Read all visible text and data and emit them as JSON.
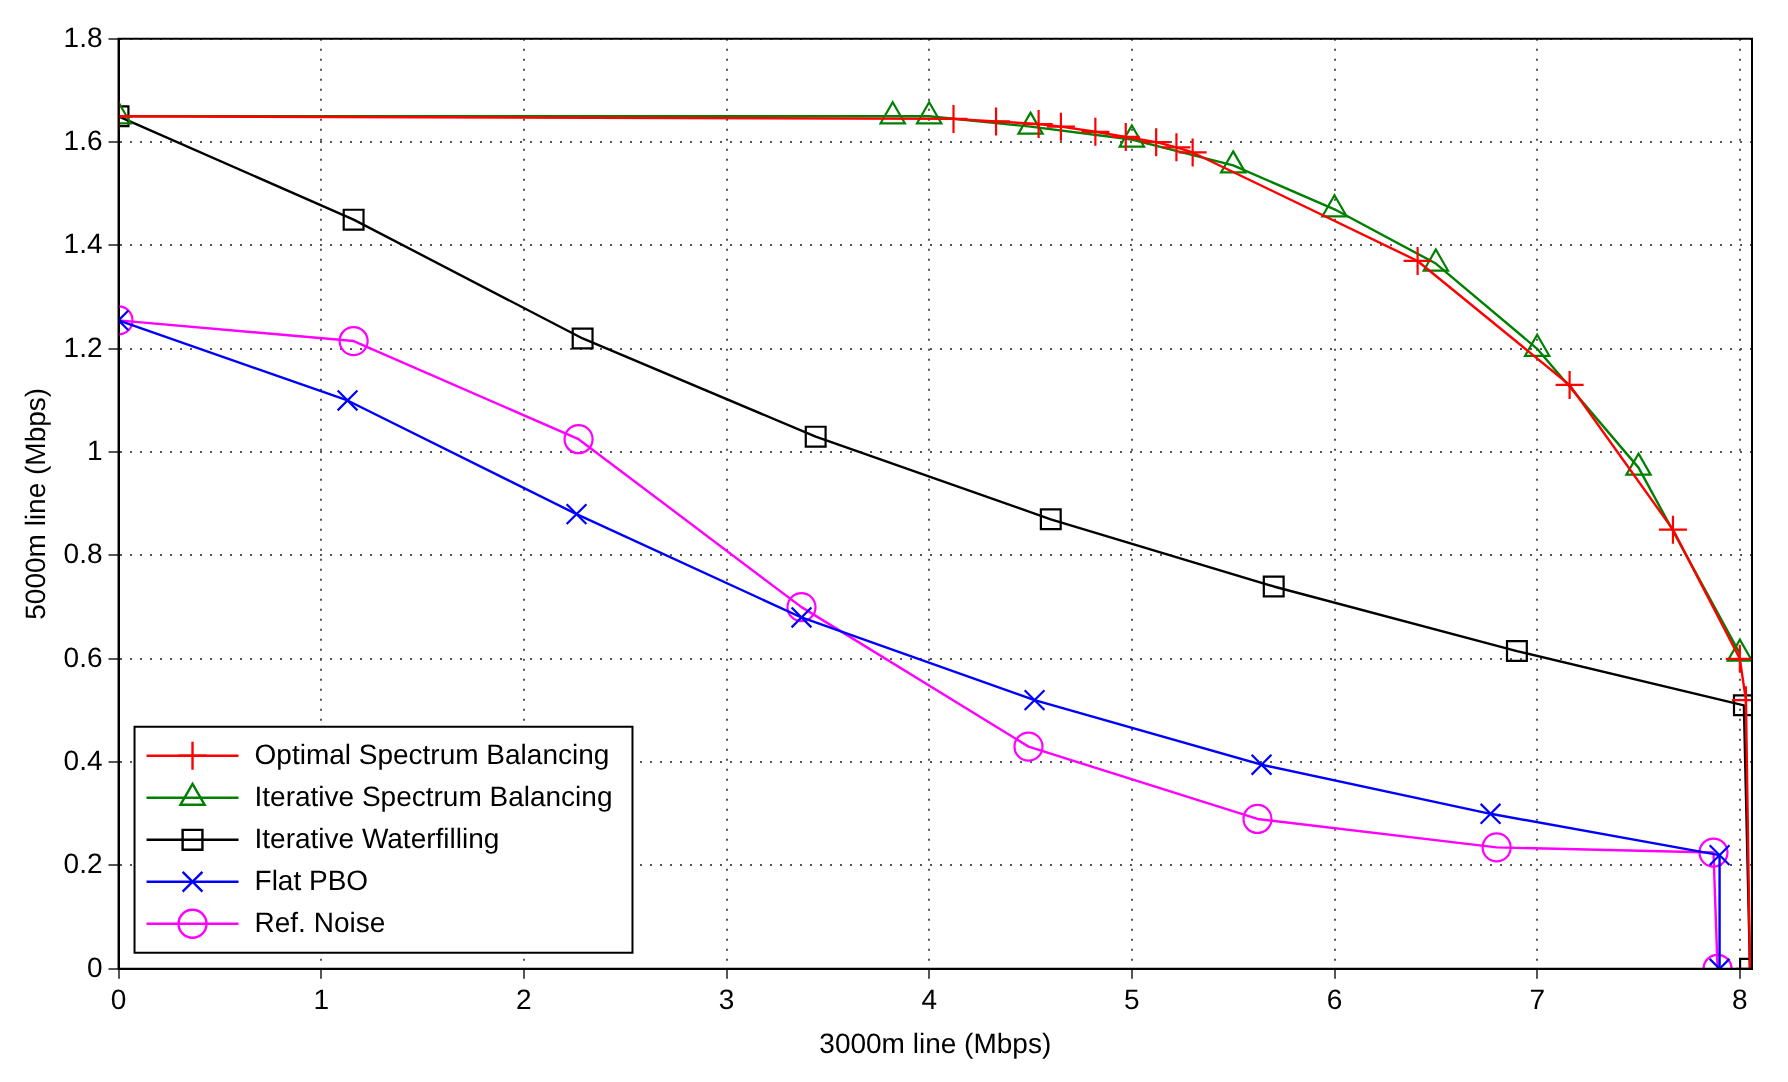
{
  "chart_data": {
    "type": "line",
    "xlabel": "3000m line (Mbps)",
    "ylabel": "5000m line (Mbps)",
    "xlim": [
      0,
      8.06
    ],
    "xticks": [
      0,
      1,
      2,
      3,
      4,
      5,
      6,
      7,
      8
    ],
    "ylim": [
      0,
      1.8
    ],
    "yticks": [
      0,
      0.2,
      0.4,
      0.6,
      0.8,
      1,
      1.2,
      1.4,
      1.6,
      1.8
    ],
    "grid": true,
    "legend": "bottom left",
    "line_style": "solid",
    "series": [
      {
        "name": "Optimal Spectrum Balancing",
        "color": "#ff0000",
        "marker": "plus",
        "x": [
          0,
          4.12,
          4.33,
          4.54,
          4.65,
          4.82,
          4.97,
          5.12,
          5.22,
          5.3,
          6.41,
          7.16,
          7.67,
          8.0,
          8.03,
          8.05
        ],
        "values": [
          1.65,
          1.645,
          1.64,
          1.635,
          1.63,
          1.62,
          1.61,
          1.6,
          1.59,
          1.58,
          1.37,
          1.13,
          0.85,
          0.6,
          0.52,
          0
        ]
      },
      {
        "name": "Iterative Spectrum Balancing",
        "color": "#008000",
        "marker": "triangle",
        "x": [
          0,
          3.82,
          4.0,
          4.5,
          5.0,
          5.5,
          6.0,
          6.5,
          7.0,
          7.5,
          8.0
        ],
        "values": [
          1.65,
          1.65,
          1.65,
          1.63,
          1.605,
          1.555,
          1.47,
          1.365,
          1.2,
          0.97,
          0.61
        ]
      },
      {
        "name": "Iterative Waterfilling",
        "color": "#000000",
        "marker": "square",
        "x": [
          0,
          1.16,
          2.29,
          3.44,
          4.6,
          5.7,
          6.9,
          8.02,
          8.05
        ],
        "values": [
          1.65,
          1.45,
          1.22,
          1.03,
          0.87,
          0.74,
          0.615,
          0.51,
          0
        ]
      },
      {
        "name": "Flat PBO",
        "color": "#0000ff",
        "marker": "cross",
        "x": [
          0,
          1.13,
          2.26,
          3.37,
          4.52,
          5.64,
          6.77,
          7.9,
          7.9
        ],
        "values": [
          1.255,
          1.1,
          0.88,
          0.68,
          0.52,
          0.395,
          0.3,
          0.22,
          0
        ]
      },
      {
        "name": "Ref. Noise",
        "color": "#ff00ff",
        "marker": "circle",
        "x": [
          0,
          1.16,
          2.27,
          3.37,
          4.49,
          5.62,
          6.8,
          7.87,
          7.89
        ],
        "values": [
          1.255,
          1.215,
          1.025,
          0.7,
          0.43,
          0.29,
          0.235,
          0.225,
          0
        ]
      }
    ]
  }
}
